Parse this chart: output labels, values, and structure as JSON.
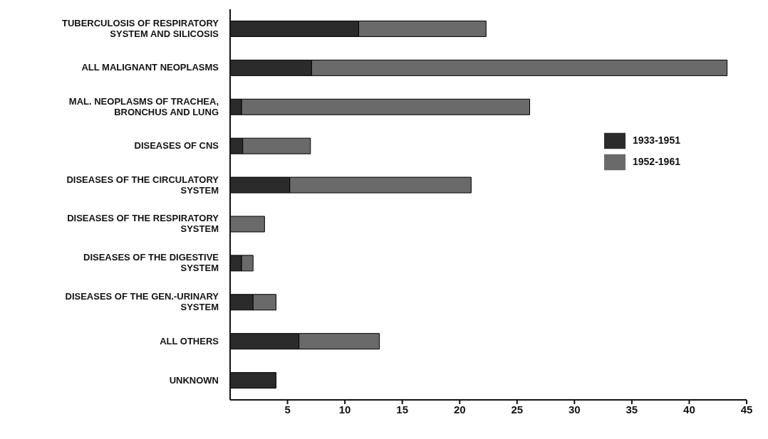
{
  "chart_data": {
    "type": "bar",
    "orientation": "horizontal",
    "stacked": true,
    "categories": [
      "TUBERCULOSIS OF RESPIRATORY SYSTEM AND SILICOSIS",
      "ALL MALIGNANT NEOPLASMS",
      "MAL. NEOPLASMS OF TRACHEA, BRONCHUS AND LUNG",
      "DISEASES OF CNS",
      "DISEASES OF THE CIRCULATORY SYSTEM",
      "DISEASES OF THE RESPIRATORY SYSTEM",
      "DISEASES OF THE DIGESTIVE SYSTEM",
      "DISEASES OF THE GEN.-URINARY SYSTEM",
      "ALL OTHERS",
      "UNKNOWN"
    ],
    "series": [
      {
        "name": "1933-1951",
        "color": "#2b2b2b",
        "values": [
          11.2,
          7.1,
          1.0,
          1.1,
          5.2,
          0,
          1.0,
          2.0,
          6.0,
          4.0
        ]
      },
      {
        "name": "1952-1961",
        "color": "#6a6a6a",
        "values": [
          11.1,
          36.2,
          25.1,
          5.9,
          15.8,
          3.0,
          1.0,
          2.0,
          7.0,
          0
        ]
      }
    ],
    "xlim": [
      0,
      45
    ],
    "xticks": [
      5,
      10,
      15,
      20,
      25,
      30,
      35,
      40,
      45
    ],
    "grid": false,
    "legend": "right"
  }
}
